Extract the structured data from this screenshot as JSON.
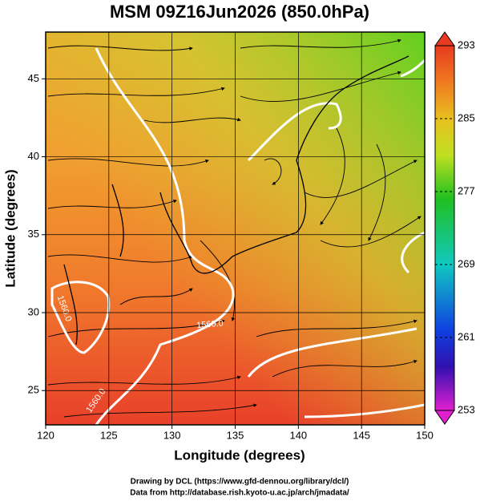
{
  "title": "MSM 09Z16Jun2026 (850.0hPa)",
  "x_axis": {
    "label": "Longitude (degrees)",
    "lim": [
      120,
      150
    ],
    "ticks": [
      120,
      125,
      130,
      135,
      140,
      145,
      150
    ]
  },
  "y_axis": {
    "label": "Latitude  (degrees)",
    "lim": [
      22.8,
      48
    ],
    "ticks": [
      25,
      30,
      35,
      40,
      45
    ]
  },
  "colorbar": {
    "lim": [
      253,
      293
    ],
    "ticks": [
      253,
      261,
      269,
      277,
      285,
      293
    ]
  },
  "contour_labels": [
    "1560.0",
    "1560.0",
    "1560.0"
  ],
  "footer": [
    "Drawing by DCL (https://www.gfd-dennou.org/library/dcl/)",
    "Data from http://database.rish.kyoto-u.ac.jp/arch/jmadata/"
  ]
}
